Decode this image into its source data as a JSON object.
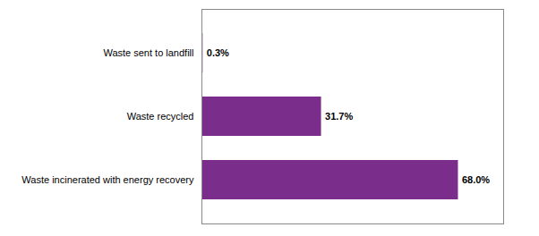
{
  "chart_data": {
    "type": "bar",
    "orientation": "horizontal",
    "categories": [
      "Waste incinerated with energy recovery",
      "Waste recycled",
      "Waste sent to landfill"
    ],
    "values": [
      68.0,
      31.7,
      0.3
    ],
    "value_labels": [
      "68.0%",
      "31.7%",
      "0.3%"
    ],
    "data_labels": true,
    "color": "#7B2D8B",
    "xlim": [
      0,
      80
    ],
    "grid": false,
    "tick_labels": "y"
  }
}
